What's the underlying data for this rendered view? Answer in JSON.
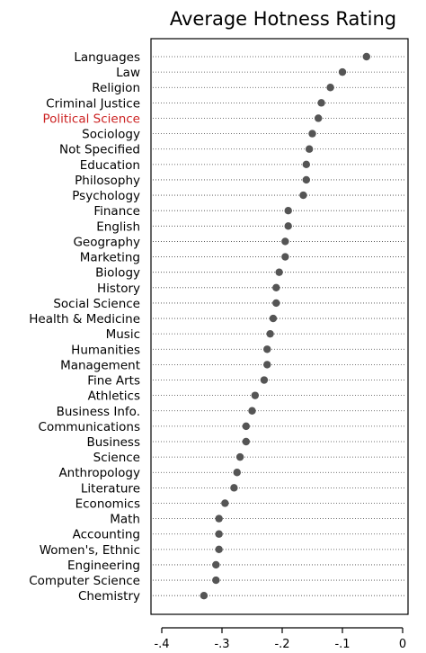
{
  "chart_data": {
    "type": "dot",
    "title": "Average Hotness Rating",
    "xlabel": "",
    "ylabel": "",
    "xlim": [
      -0.42,
      0.01
    ],
    "xticks": [
      -0.4,
      -0.3,
      -0.2,
      -0.1,
      0
    ],
    "xtick_labels": [
      "-.4",
      "-.3",
      "-.2",
      "-.1",
      "0"
    ],
    "grid": "dotted horizontal guide lines",
    "highlight_color": "#cc2222",
    "point_color": "#555555",
    "categories": [
      "Languages",
      "Law",
      "Religion",
      "Criminal Justice",
      "Political Science",
      "Sociology",
      "Not Specified",
      "Education",
      "Philosophy",
      "Psychology",
      "Finance",
      "English",
      "Geography",
      "Marketing",
      "Biology",
      "History",
      "Social Science",
      "Health & Medicine",
      "Music",
      "Humanities",
      "Management",
      "Fine Arts",
      "Athletics",
      "Business Info.",
      "Communications",
      "Business",
      "Science",
      "Anthropology",
      "Literature",
      "Economics",
      "Math",
      "Accounting",
      "Women's, Ethnic",
      "Engineering",
      "Computer Science",
      "Chemistry"
    ],
    "highlighted": [
      "Political Science"
    ],
    "values": [
      -0.06,
      -0.1,
      -0.12,
      -0.135,
      -0.14,
      -0.15,
      -0.155,
      -0.16,
      -0.16,
      -0.165,
      -0.19,
      -0.19,
      -0.195,
      -0.195,
      -0.205,
      -0.21,
      -0.21,
      -0.215,
      -0.22,
      -0.225,
      -0.225,
      -0.23,
      -0.245,
      -0.25,
      -0.26,
      -0.26,
      -0.27,
      -0.275,
      -0.28,
      -0.295,
      -0.305,
      -0.305,
      -0.305,
      -0.31,
      -0.31,
      -0.33
    ]
  }
}
